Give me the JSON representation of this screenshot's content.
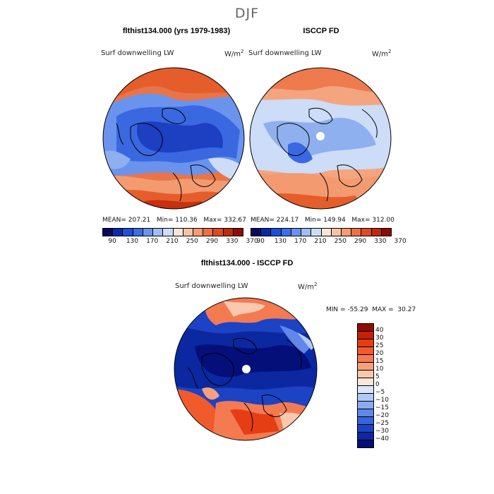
{
  "page": {
    "title": "DJF"
  },
  "panels": {
    "left": {
      "title": "flthist134.000 (yrs 1979-1983)",
      "variable": "Surf downwelling LW",
      "units": "W/m",
      "units_sup": "2",
      "stats": {
        "mean_label": "MEAN=",
        "mean": "207.21",
        "min_label": "Min=",
        "min": "110.36",
        "max_label": "Max=",
        "max": "332.67"
      }
    },
    "right": {
      "title": "ISCCP FD",
      "variable": "Surf downwelling LW",
      "units": "W/m",
      "units_sup": "2",
      "stats": {
        "mean_label": "MEAN=",
        "mean": "224.17",
        "min_label": "Min=",
        "min": "149.94",
        "max_label": "Max=",
        "max": "312.00"
      }
    },
    "diff": {
      "title": "flthist134.000 - ISCCP FD",
      "variable": "Surf downwelling LW",
      "units": "W/m",
      "units_sup": "2",
      "stats": {
        "min_label": "MIN =",
        "min": "-55.29",
        "max_label": "MAX =",
        "max": "30.27"
      }
    }
  },
  "colorbar_abs": {
    "colors": [
      "#08085e",
      "#0b2aa8",
      "#1f4fd8",
      "#3a6ee6",
      "#6a93ee",
      "#9fbdf3",
      "#cfdcf8",
      "#f6e6d8",
      "#f7c3a3",
      "#f59a73",
      "#ee6f46",
      "#de4a24",
      "#be2a10",
      "#8e0c05"
    ],
    "ticks": [
      "90",
      "130",
      "170",
      "210",
      "250",
      "290",
      "330",
      "370"
    ]
  },
  "colorbar_diff": {
    "colors": [
      "#8e0c05",
      "#c81f08",
      "#e53e14",
      "#f05a2c",
      "#f47a52",
      "#f7a07e",
      "#f9c8ad",
      "#fbe6d8",
      "#d9e6fb",
      "#b1caf5",
      "#8aacef",
      "#5f88e8",
      "#3565dc",
      "#1b43c4",
      "#0c28a0",
      "#040f7a"
    ],
    "ticks": [
      "40",
      "30",
      "25",
      "20",
      "15",
      "10",
      "5",
      "0",
      "−5",
      "−10",
      "−15",
      "−20",
      "−25",
      "−30",
      "−40"
    ]
  },
  "map_colors": {
    "deep_blue": "#1d3fc2",
    "mid_blue": "#3a68e0",
    "light_blue": "#8fb0ef",
    "pale_blue": "#cddcf7",
    "pale_orange": "#f8d4bd",
    "orange": "#f39a70",
    "dark_orange": "#e65d2c",
    "red": "#c8300f",
    "navy": "#0a1a8a"
  }
}
